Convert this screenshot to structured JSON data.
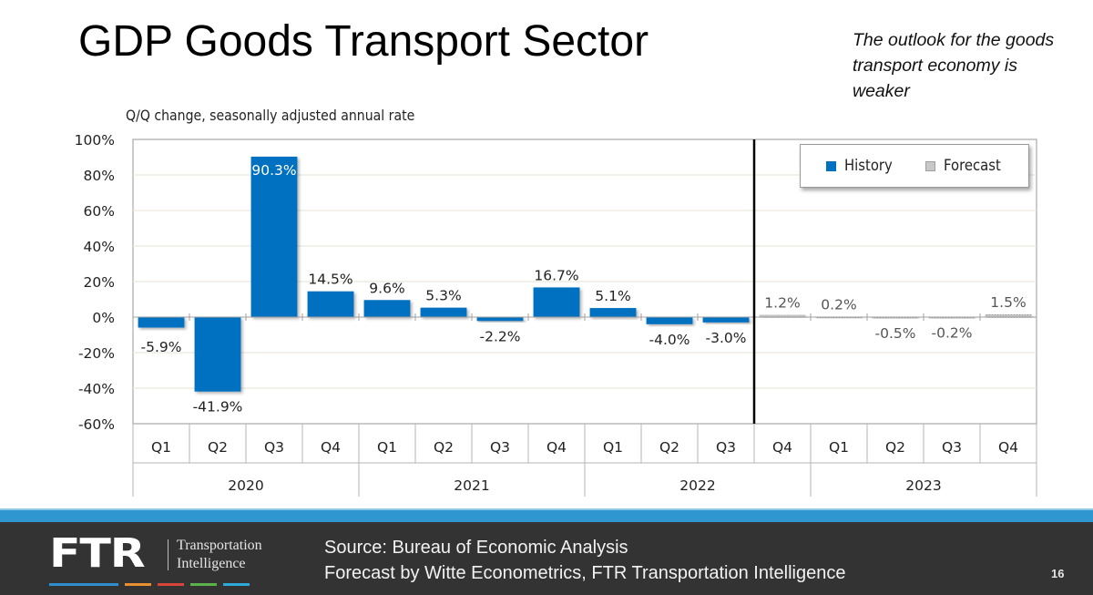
{
  "slide": {
    "title": "GDP Goods Transport Sector",
    "note": "The outlook for the goods transport economy is weaker",
    "page_number": "16"
  },
  "footer": {
    "logo_text": "FTR",
    "logo_line1": "Transportation",
    "logo_line2": "Intelligence",
    "source_line1": "Source: Bureau of Economic Analysis",
    "source_line2": "Forecast by Witte Econometrics, FTR Transportation Intelligence",
    "stripe_colors": [
      "#2e8fcf",
      "#e8902e",
      "#d9443a",
      "#5cb24a",
      "#2ea8d8"
    ]
  },
  "colors": {
    "history": "#0070c0",
    "forecast": "#b0b0b0",
    "footer_band": "#2f96cf",
    "footer_bg": "#333333"
  },
  "chart_data": {
    "type": "bar",
    "title": "GDP Goods Transport Sector",
    "subtitle": "Q/Q change, seasonally adjusted annual rate",
    "xlabel": "",
    "ylabel": "",
    "ylim": [
      -60,
      100
    ],
    "yticks": [
      100,
      80,
      60,
      40,
      20,
      0,
      -20,
      -40,
      -60
    ],
    "ytick_labels": [
      "100%",
      "80%",
      "60%",
      "40%",
      "20%",
      "0%",
      "-20%",
      "-40%",
      "-60%"
    ],
    "grid": true,
    "legend_position": "top-right",
    "legend": [
      "History",
      "Forecast"
    ],
    "categories": [
      "Q1",
      "Q2",
      "Q3",
      "Q4",
      "Q1",
      "Q2",
      "Q3",
      "Q4",
      "Q1",
      "Q2",
      "Q3",
      "Q4",
      "Q1",
      "Q2",
      "Q3",
      "Q4"
    ],
    "years": [
      {
        "label": "2020",
        "span": 4
      },
      {
        "label": "2021",
        "span": 4
      },
      {
        "label": "2022",
        "span": 4
      },
      {
        "label": "2023",
        "span": 4
      }
    ],
    "values": [
      -5.9,
      -41.9,
      90.3,
      14.5,
      9.6,
      5.3,
      -2.2,
      16.7,
      5.1,
      -4.0,
      -3.0,
      1.2,
      0.2,
      -0.5,
      -0.2,
      1.5
    ],
    "labels": [
      "-5.9%",
      "-41.9%",
      "90.3%",
      "14.5%",
      "9.6%",
      "5.3%",
      "-2.2%",
      "16.7%",
      "5.1%",
      "-4.0%",
      "-3.0%",
      "1.2%",
      "0.2%",
      "-0.5%",
      "-0.2%",
      "1.5%"
    ],
    "series_type": [
      "History",
      "History",
      "History",
      "History",
      "History",
      "History",
      "History",
      "History",
      "History",
      "History",
      "History",
      "Forecast",
      "Forecast",
      "Forecast",
      "Forecast",
      "Forecast"
    ],
    "forecast_divider_after_index": 10
  }
}
